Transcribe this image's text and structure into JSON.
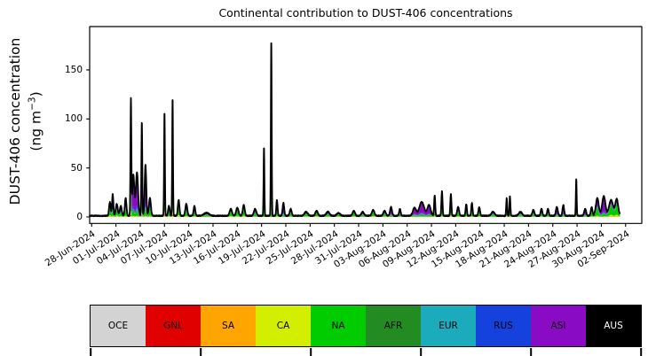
{
  "chart_data": {
    "type": "area",
    "title": "Continental contribution to DUST-406 concentrations",
    "ylabel_line1": "DUST-406 concentration",
    "ylabel_unit_open": "(ng m",
    "ylabel_unit_exp": "−3",
    "ylabel_unit_close": ")",
    "x_tick_labels": [
      "28-Jun-2024",
      "01-Jul-2024",
      "04-Jul-2024",
      "07-Jul-2024",
      "10-Jul-2024",
      "13-Jul-2024",
      "16-Jul-2024",
      "19-Jul-2024",
      "22-Jul-2024",
      "25-Jul-2024",
      "28-Jul-2024",
      "31-Jul-2024",
      "03-Aug-2024",
      "06-Aug-2024",
      "09-Aug-2024",
      "12-Aug-2024",
      "15-Aug-2024",
      "18-Aug-2024",
      "21-Aug-2024",
      "24-Aug-2024",
      "27-Aug-2024",
      "30-Aug-2024",
      "02-Sep-2024"
    ],
    "x_tick_step_days": 3,
    "xlim_days": [
      -0.25,
      68.0
    ],
    "y_ticks": [
      0,
      50,
      100,
      150
    ],
    "ylim": [
      -6.6,
      194.2
    ],
    "grid": false,
    "legend_position": "bottom-bar",
    "regions": [
      {
        "code": "OCE",
        "color": "#d3d3d3",
        "text_color": "#000000"
      },
      {
        "code": "GNL",
        "color": "#e00000",
        "text_color": "#000000"
      },
      {
        "code": "SA",
        "color": "#ffa500",
        "text_color": "#000000"
      },
      {
        "code": "CA",
        "color": "#d4ee00",
        "text_color": "#000000"
      },
      {
        "code": "NA",
        "color": "#00cc00",
        "text_color": "#000000"
      },
      {
        "code": "AFR",
        "color": "#228b22",
        "text_color": "#000000"
      },
      {
        "code": "EUR",
        "color": "#1cabbd",
        "text_color": "#000000"
      },
      {
        "code": "RUS",
        "color": "#1541dd",
        "text_color": "#000000"
      },
      {
        "code": "ASI",
        "color": "#8a0bc4",
        "text_color": "#000000"
      },
      {
        "code": "AUS",
        "color": "#000000",
        "text_color": "#ffffff"
      }
    ],
    "total_line": {
      "color": "#000000",
      "width": 1.8
    },
    "data_start_day": -0.25,
    "data_end_day": 65.3,
    "baseline": {
      "level": 0.7,
      "noise_amp": 1.0,
      "mix": "base"
    },
    "mixes": {
      "base": {
        "oce": 0.04,
        "gnl": 0.02,
        "sa": 0.05,
        "ca": 0.07,
        "na": 0.34,
        "afr": 0.12,
        "eur": 0.09,
        "rus": 0.05,
        "asi": 0.19,
        "aus": 0.03
      },
      "dark": {
        "oce": 0.01,
        "gnl": 0.01,
        "sa": 0.01,
        "ca": 0.02,
        "na": 0.18,
        "afr": 0.05,
        "eur": 0.04,
        "rus": 0.14,
        "asi": 0.42,
        "aus": 0.12
      },
      "green": {
        "oce": 0.0,
        "gnl": 0.0,
        "sa": 0.04,
        "ca": 0.07,
        "na": 0.56,
        "afr": 0.1,
        "eur": 0.05,
        "rus": 0.03,
        "asi": 0.12,
        "aus": 0.03
      },
      "green2": {
        "oce": 0.0,
        "gnl": 0.0,
        "sa": 0.04,
        "ca": 0.08,
        "na": 0.5,
        "afr": 0.08,
        "eur": 0.06,
        "rus": 0.04,
        "asi": 0.16,
        "aus": 0.04
      },
      "purple": {
        "oce": 0.0,
        "gnl": 0.0,
        "sa": 0.0,
        "ca": 0.02,
        "na": 0.1,
        "afr": 0.03,
        "eur": 0.03,
        "rus": 0.06,
        "asi": 0.7,
        "aus": 0.06
      },
      "blue": {
        "oce": 0.0,
        "gnl": 0.0,
        "sa": 0.0,
        "ca": 0.0,
        "na": 0.16,
        "afr": 0.04,
        "eur": 0.04,
        "rus": 0.3,
        "asi": 0.32,
        "aus": 0.14
      },
      "mixed": {
        "oce": 0.0,
        "gnl": 0.0,
        "sa": 0.02,
        "ca": 0.04,
        "na": 0.3,
        "afr": 0.07,
        "eur": 0.06,
        "rus": 0.08,
        "asi": 0.33,
        "aus": 0.1
      },
      "mixed2": {
        "oce": 0.0,
        "gnl": 0.0,
        "sa": 0.02,
        "ca": 0.04,
        "na": 0.35,
        "afr": 0.06,
        "eur": 0.06,
        "rus": 0.06,
        "asi": 0.31,
        "aus": 0.1
      }
    },
    "peaks": [
      [
        2.25,
        14,
        0.1,
        "green"
      ],
      [
        2.6,
        22,
        0.08,
        "dark"
      ],
      [
        3.1,
        12,
        0.12,
        "green"
      ],
      [
        3.6,
        10,
        0.12,
        "mixed"
      ],
      [
        4.2,
        18,
        0.1,
        "mixed"
      ],
      [
        4.85,
        118,
        0.055,
        "dark"
      ],
      [
        5.15,
        42,
        0.12,
        "purple"
      ],
      [
        5.6,
        44,
        0.14,
        "purple"
      ],
      [
        6.2,
        96,
        0.055,
        "dark"
      ],
      [
        6.65,
        52,
        0.1,
        "purple"
      ],
      [
        7.2,
        18,
        0.12,
        "mixed"
      ],
      [
        9.0,
        106,
        0.05,
        "dark"
      ],
      [
        9.55,
        10,
        0.1,
        "mixed"
      ],
      [
        10.0,
        120,
        0.05,
        "dark"
      ],
      [
        10.75,
        16,
        0.1,
        "green"
      ],
      [
        11.7,
        12,
        0.12,
        "mixed"
      ],
      [
        12.7,
        10,
        0.1,
        "mixed"
      ],
      [
        14.2,
        3,
        0.3,
        "mixed"
      ],
      [
        17.2,
        7,
        0.15,
        "green"
      ],
      [
        18.0,
        8,
        0.15,
        "green"
      ],
      [
        18.8,
        11,
        0.12,
        "green"
      ],
      [
        20.2,
        7,
        0.15,
        "mixed"
      ],
      [
        21.3,
        70,
        0.05,
        "blue"
      ],
      [
        22.2,
        180,
        0.05,
        "blue"
      ],
      [
        22.9,
        16,
        0.08,
        "mixed"
      ],
      [
        23.7,
        13,
        0.1,
        "purple"
      ],
      [
        24.6,
        7,
        0.12,
        "mixed"
      ],
      [
        26.5,
        4,
        0.2,
        "green"
      ],
      [
        27.8,
        5,
        0.15,
        "green"
      ],
      [
        29.2,
        4,
        0.2,
        "mixed"
      ],
      [
        30.5,
        3,
        0.2,
        "green"
      ],
      [
        32.4,
        5,
        0.15,
        "green"
      ],
      [
        33.5,
        4,
        0.15,
        "mixed"
      ],
      [
        34.8,
        6,
        0.15,
        "green"
      ],
      [
        36.2,
        5,
        0.15,
        "mixed"
      ],
      [
        37.0,
        9,
        0.12,
        "purple"
      ],
      [
        38.1,
        7,
        0.1,
        "dark"
      ],
      [
        39.9,
        8,
        0.2,
        "purple"
      ],
      [
        40.8,
        14,
        0.3,
        "purple"
      ],
      [
        41.7,
        11,
        0.2,
        "purple"
      ],
      [
        42.4,
        21,
        0.07,
        "dark"
      ],
      [
        43.3,
        25,
        0.07,
        "dark"
      ],
      [
        44.4,
        22,
        0.07,
        "mixed"
      ],
      [
        45.3,
        9,
        0.12,
        "mixed"
      ],
      [
        46.3,
        12,
        0.08,
        "mixed"
      ],
      [
        47.0,
        13,
        0.08,
        "mixed"
      ],
      [
        47.9,
        9,
        0.1,
        "mixed"
      ],
      [
        49.6,
        4,
        0.2,
        "mixed"
      ],
      [
        51.3,
        18,
        0.06,
        "dark"
      ],
      [
        51.7,
        20,
        0.06,
        "dark"
      ],
      [
        53.0,
        4,
        0.2,
        "mixed"
      ],
      [
        54.6,
        6,
        0.12,
        "mixed"
      ],
      [
        55.6,
        7,
        0.1,
        "mixed"
      ],
      [
        56.4,
        7,
        0.1,
        "mixed"
      ],
      [
        57.5,
        9,
        0.12,
        "purple"
      ],
      [
        58.3,
        11,
        0.1,
        "purple"
      ],
      [
        59.9,
        38,
        0.05,
        "dark"
      ],
      [
        61.0,
        7,
        0.12,
        "purple"
      ],
      [
        61.8,
        9,
        0.1,
        "mixed"
      ],
      [
        62.5,
        18,
        0.18,
        "mixed2"
      ],
      [
        63.3,
        20,
        0.2,
        "purple"
      ],
      [
        64.2,
        16,
        0.25,
        "green2"
      ],
      [
        64.9,
        17,
        0.18,
        "green2"
      ]
    ]
  },
  "legend": {
    "tick_positions_pct": [
      0,
      20,
      40,
      60,
      80,
      100
    ]
  },
  "layout_colors": {
    "axes_edge": "#000000",
    "background": "#ffffff"
  }
}
